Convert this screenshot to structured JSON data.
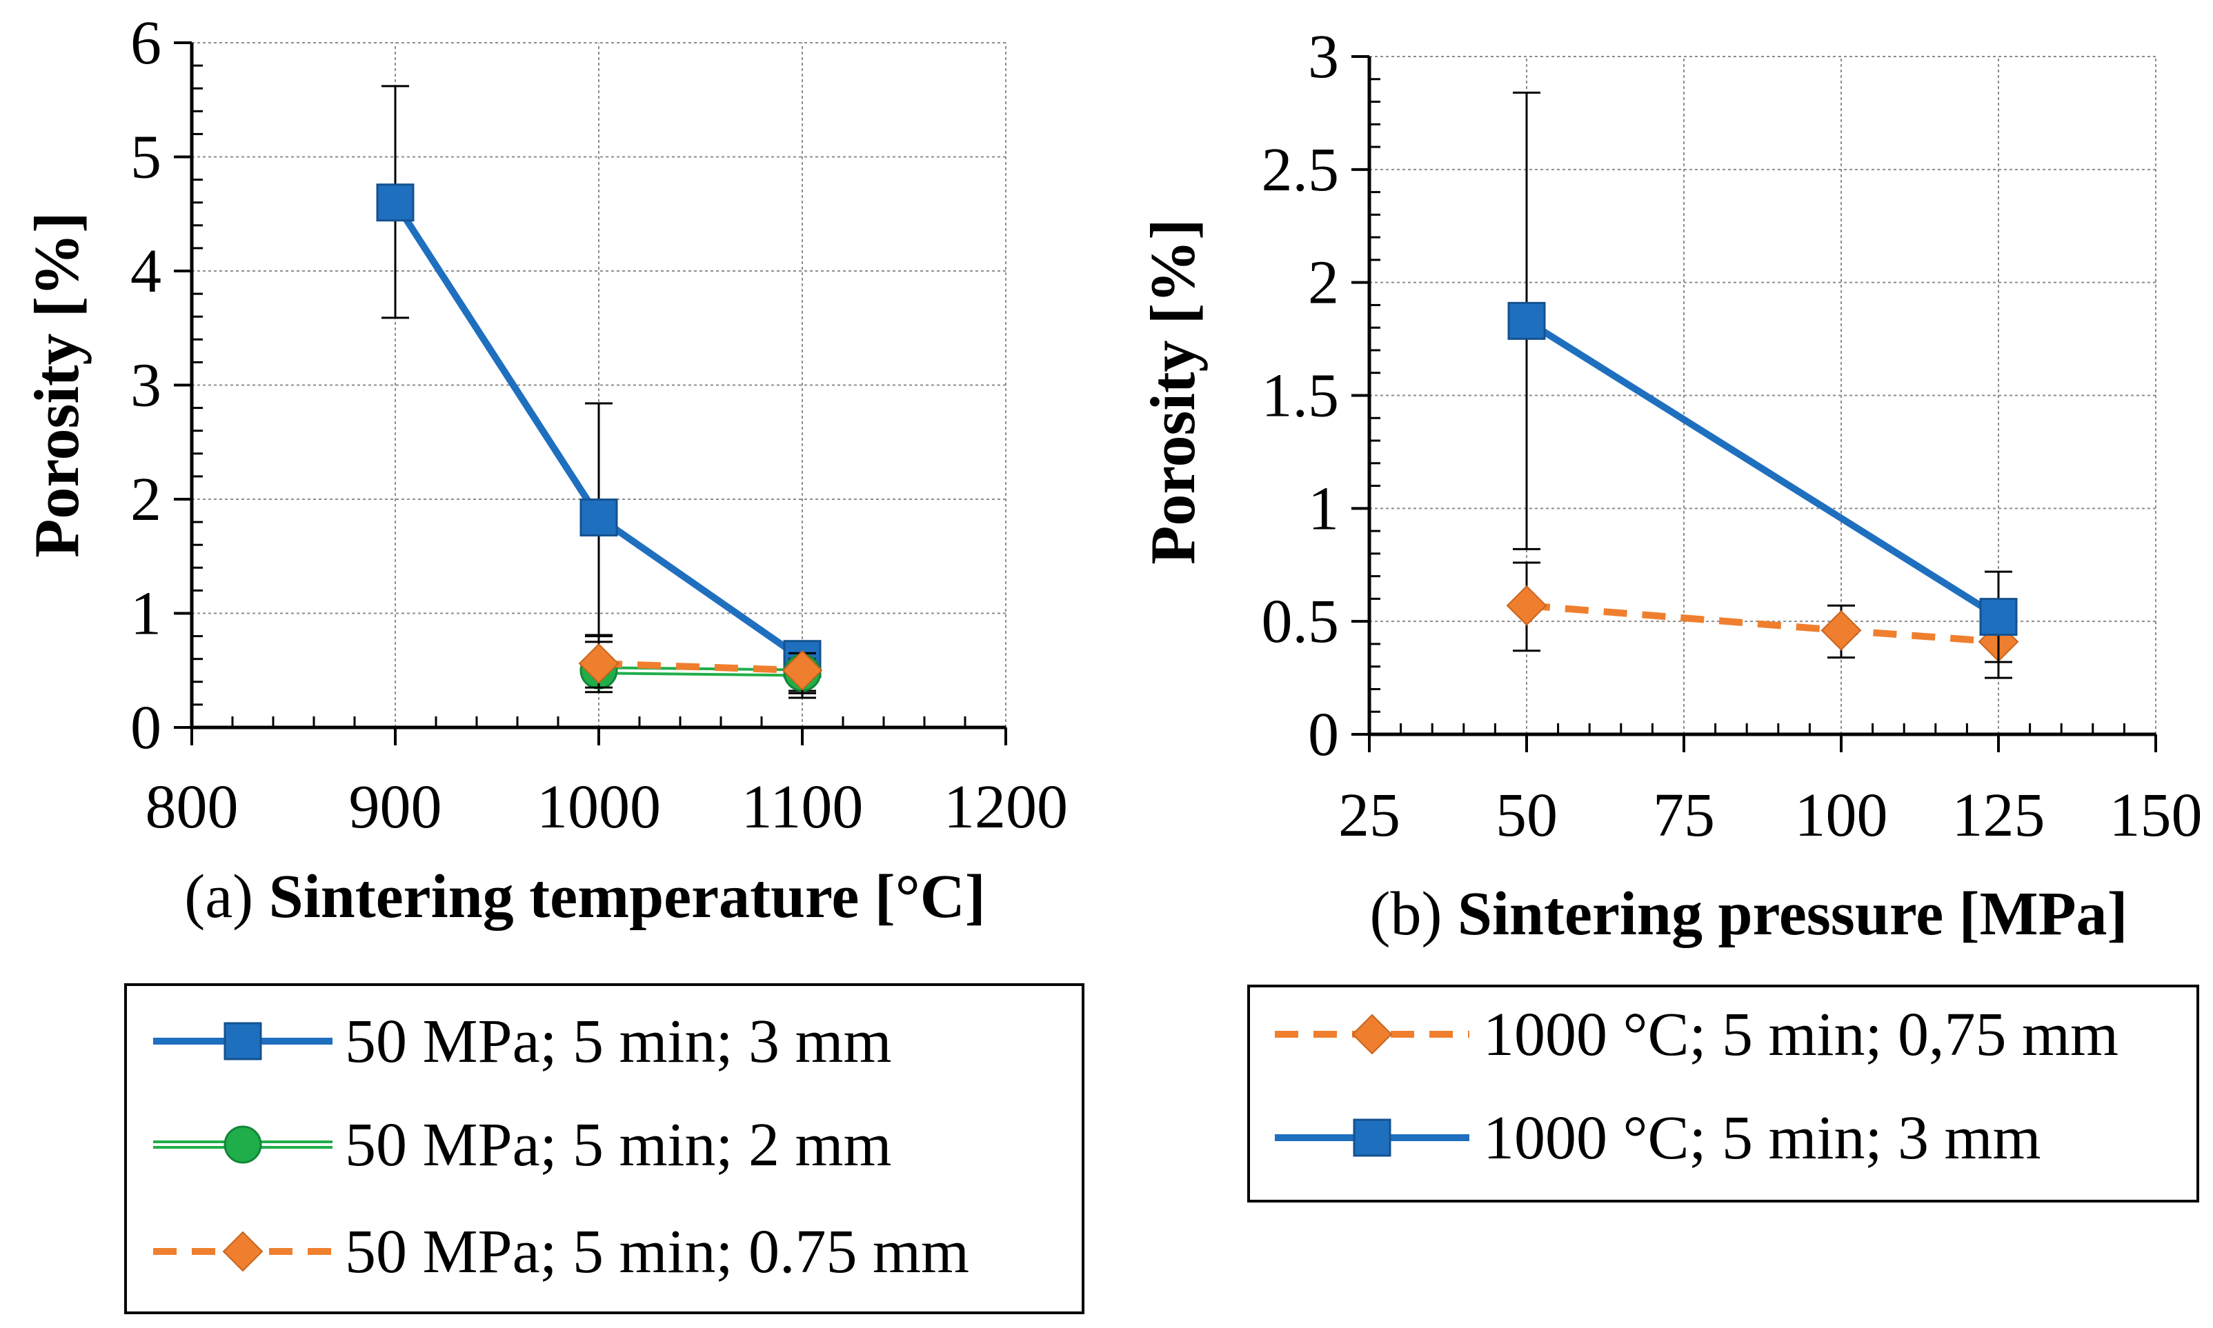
{
  "chart_data": [
    {
      "type": "line",
      "panel_label": "(a)",
      "xlabel": "Sintering temperature [°C]",
      "ylabel": "Porosity [%]",
      "xlim": [
        800,
        1200
      ],
      "ylim": [
        0,
        6
      ],
      "x_ticks": [
        "800",
        "900",
        "1000",
        "1100",
        "1200"
      ],
      "y_ticks": [
        "0",
        "1",
        "2",
        "3",
        "4",
        "5",
        "6"
      ],
      "grid": true,
      "legend_position": "bottom",
      "series": [
        {
          "name": "50 MPa; 5 min; 3 mm",
          "color": "#1f6fbf",
          "marker": "square",
          "style": "solid",
          "x": [
            900,
            1000,
            1100
          ],
          "y": [
            4.6,
            1.84,
            0.6
          ],
          "err_low": [
            3.59,
            0.81,
            0.32
          ],
          "err_high": [
            5.62,
            2.84,
            0.6
          ]
        },
        {
          "name": "50 MPa; 5 min; 2 mm",
          "color": "#1fae4a",
          "marker": "circle",
          "style": "double",
          "x": [
            1000,
            1100
          ],
          "y": [
            0.5,
            0.48
          ],
          "err_low": [
            0.31,
            0.26
          ],
          "err_high": [
            0.75,
            0.6
          ]
        },
        {
          "name": "50 MPa; 5 min; 0.75 mm",
          "color": "#ef7f2e",
          "marker": "diamond",
          "style": "dashed",
          "x": [
            1000,
            1100
          ],
          "y": [
            0.56,
            0.5
          ],
          "err_low": [
            0.35,
            0.3
          ],
          "err_high": [
            0.8,
            0.65
          ]
        }
      ]
    },
    {
      "type": "line",
      "panel_label": "(b)",
      "xlabel": "Sintering pressure [MPa]",
      "ylabel": "Porosity [%]",
      "xlim": [
        25,
        150
      ],
      "ylim": [
        0,
        3
      ],
      "x_ticks": [
        "25",
        "50",
        "75",
        "100",
        "125",
        "150"
      ],
      "y_ticks": [
        "0",
        "0.5",
        "1",
        "1.5",
        "2",
        "2.5",
        "3"
      ],
      "grid": true,
      "legend_position": "bottom",
      "series": [
        {
          "name": "1000 °C; 5 min; 0,75 mm",
          "color": "#ef7f2e",
          "marker": "diamond",
          "style": "dashed",
          "x": [
            50,
            100,
            125
          ],
          "y": [
            0.57,
            0.46,
            0.41
          ],
          "err_low": [
            0.37,
            0.34,
            0.25
          ],
          "err_high": [
            0.76,
            0.57,
            0.5
          ]
        },
        {
          "name": "1000 °C; 5 min; 3 mm",
          "color": "#1f6fbf",
          "marker": "square",
          "style": "solid",
          "x": [
            50,
            125
          ],
          "y": [
            1.83,
            0.52
          ],
          "err_low": [
            0.82,
            0.32
          ],
          "err_high": [
            2.84,
            0.72
          ]
        }
      ]
    }
  ]
}
